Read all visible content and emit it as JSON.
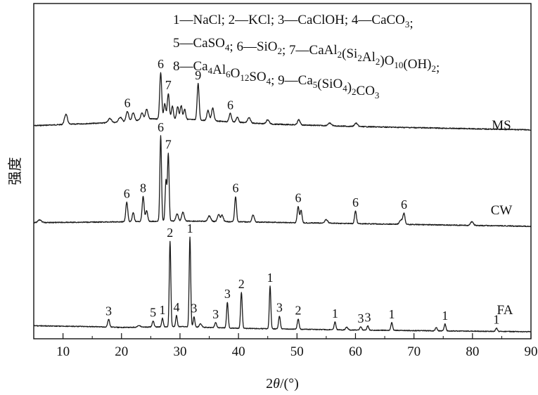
{
  "chart_data": {
    "type": "line",
    "xlabel_prefix": "2",
    "xlabel_theta": "θ",
    "xlabel_suffix": "/(°)",
    "ylabel": "强度",
    "xlim": [
      5,
      90
    ],
    "xticks": [
      "10",
      "20",
      "30",
      "40",
      "50",
      "60",
      "70",
      "80",
      "90"
    ],
    "legend_position": "top-right",
    "legend": [
      {
        "num": "1",
        "formula": [
          {
            "t": "NaCl"
          }
        ]
      },
      {
        "num": "2",
        "formula": [
          {
            "t": "KCl"
          }
        ]
      },
      {
        "num": "3",
        "formula": [
          {
            "t": "CaClOH"
          }
        ]
      },
      {
        "num": "4",
        "formula": [
          {
            "t": "CaCO"
          },
          {
            "s": "3"
          }
        ]
      },
      {
        "num": "5",
        "formula": [
          {
            "t": "CaSO"
          },
          {
            "s": "4"
          }
        ]
      },
      {
        "num": "6",
        "formula": [
          {
            "t": "SiO"
          },
          {
            "s": "2"
          }
        ]
      },
      {
        "num": "7",
        "formula": [
          {
            "t": "CaAl"
          },
          {
            "s": "2"
          },
          {
            "t": "(Si"
          },
          {
            "s": "2"
          },
          {
            "t": "Al"
          },
          {
            "s": "2"
          },
          {
            "t": ")O"
          },
          {
            "s": "10"
          },
          {
            "t": "(OH)"
          },
          {
            "s": "2"
          }
        ]
      },
      {
        "num": "8",
        "formula": [
          {
            "t": "Ca"
          },
          {
            "s": "4"
          },
          {
            "t": "Al"
          },
          {
            "s": "6"
          },
          {
            "t": "O"
          },
          {
            "s": "12"
          },
          {
            "t": "SO"
          },
          {
            "s": "4"
          }
        ]
      },
      {
        "num": "9",
        "formula": [
          {
            "t": "Ca"
          },
          {
            "s": "5"
          },
          {
            "t": "(SiO"
          },
          {
            "s": "4"
          },
          {
            "t": ")"
          },
          {
            "s": "2"
          },
          {
            "t": "CO"
          },
          {
            "s": "3"
          }
        ]
      }
    ],
    "series": [
      {
        "name": "MS",
        "baseline": [
          [
            5,
            0.06
          ],
          [
            20,
            0.1
          ],
          [
            25,
            0.14
          ],
          [
            30,
            0.14
          ],
          [
            35,
            0.12
          ],
          [
            45,
            0.08
          ],
          [
            60,
            0.05
          ],
          [
            75,
            0.03
          ],
          [
            90,
            0.01
          ]
        ],
        "peaks": [
          [
            10.5,
            0.12,
            "",
            0.25
          ],
          [
            18,
            0.05,
            "",
            0.3
          ],
          [
            19.8,
            0.06,
            "",
            0.3
          ],
          [
            21.0,
            0.12,
            "6",
            0.22
          ],
          [
            22.0,
            0.1,
            "",
            0.22
          ],
          [
            23.5,
            0.08,
            "",
            0.22
          ],
          [
            24.3,
            0.12,
            "",
            0.22
          ],
          [
            26.7,
            0.55,
            "6",
            0.17
          ],
          [
            27.4,
            0.18,
            "",
            0.17
          ],
          [
            28.0,
            0.3,
            "7",
            0.17
          ],
          [
            28.7,
            0.15,
            "",
            0.17
          ],
          [
            29.6,
            0.15,
            "",
            0.17
          ],
          [
            30.2,
            0.16,
            "",
            0.17
          ],
          [
            30.8,
            0.12,
            "",
            0.17
          ],
          [
            33.1,
            0.43,
            "9",
            0.17
          ],
          [
            34.8,
            0.12,
            "",
            0.2
          ],
          [
            35.6,
            0.15,
            "",
            0.2
          ],
          [
            38.6,
            0.1,
            "6",
            0.2
          ],
          [
            39.8,
            0.06,
            "",
            0.2
          ],
          [
            41.8,
            0.06,
            "",
            0.25
          ],
          [
            45.0,
            0.05,
            "",
            0.25
          ],
          [
            50.3,
            0.06,
            "",
            0.22
          ],
          [
            55.6,
            0.03,
            "",
            0.3
          ],
          [
            60.1,
            0.04,
            "",
            0.25
          ]
        ]
      },
      {
        "name": "CW",
        "baseline": [
          [
            5,
            0.04
          ],
          [
            20,
            0.05
          ],
          [
            30,
            0.06
          ],
          [
            40,
            0.05
          ],
          [
            60,
            0.03
          ],
          [
            90,
            0.0
          ]
        ],
        "peaks": [
          [
            6.0,
            0.03,
            "",
            0.3
          ],
          [
            20.9,
            0.22,
            "6",
            0.17
          ],
          [
            22.0,
            0.1,
            "",
            0.17
          ],
          [
            23.7,
            0.28,
            "8",
            0.17
          ],
          [
            24.3,
            0.12,
            "",
            0.17
          ],
          [
            26.7,
            0.95,
            "6",
            0.14
          ],
          [
            27.6,
            0.45,
            "",
            0.14
          ],
          [
            28.0,
            0.75,
            "7",
            0.14
          ],
          [
            29.5,
            0.08,
            "",
            0.2
          ],
          [
            30.5,
            0.1,
            "",
            0.2
          ],
          [
            35.0,
            0.06,
            "",
            0.25
          ],
          [
            36.6,
            0.08,
            "",
            0.2
          ],
          [
            37.2,
            0.07,
            "",
            0.2
          ],
          [
            39.5,
            0.28,
            "6",
            0.16
          ],
          [
            42.5,
            0.08,
            "",
            0.2
          ],
          [
            50.2,
            0.18,
            "6",
            0.16
          ],
          [
            50.7,
            0.14,
            "",
            0.16
          ],
          [
            55.0,
            0.04,
            "",
            0.25
          ],
          [
            60.0,
            0.14,
            "6",
            0.16
          ],
          [
            67.8,
            0.05,
            "",
            0.25
          ],
          [
            68.3,
            0.12,
            "6",
            0.17
          ],
          [
            79.9,
            0.04,
            "",
            0.25
          ]
        ]
      },
      {
        "name": "FA",
        "baseline": [
          [
            5,
            0.07
          ],
          [
            15,
            0.06
          ],
          [
            20,
            0.05
          ],
          [
            30,
            0.06
          ],
          [
            40,
            0.04
          ],
          [
            60,
            0.02
          ],
          [
            90,
            0.0
          ]
        ],
        "peaks": [
          [
            17.8,
            0.09,
            "3",
            0.16
          ],
          [
            23.0,
            0.02,
            "",
            0.25
          ],
          [
            25.4,
            0.07,
            "5",
            0.16
          ],
          [
            27.0,
            0.1,
            "1",
            0.14
          ],
          [
            28.3,
            1.0,
            "2",
            0.13
          ],
          [
            29.4,
            0.13,
            "4",
            0.14
          ],
          [
            31.7,
            1.05,
            "1",
            0.13
          ],
          [
            32.4,
            0.12,
            "3",
            0.14
          ],
          [
            33.5,
            0.04,
            "",
            0.2
          ],
          [
            36.1,
            0.06,
            "3",
            0.16
          ],
          [
            38.1,
            0.3,
            "3",
            0.14
          ],
          [
            40.5,
            0.42,
            "2",
            0.14
          ],
          [
            45.4,
            0.5,
            "1",
            0.13
          ],
          [
            47.0,
            0.15,
            "3",
            0.15
          ],
          [
            50.2,
            0.12,
            "2",
            0.15
          ],
          [
            56.5,
            0.09,
            "1",
            0.15
          ],
          [
            58.5,
            0.03,
            "",
            0.2
          ],
          [
            60.9,
            0.04,
            "3",
            0.15
          ],
          [
            62.1,
            0.05,
            "3",
            0.15
          ],
          [
            66.2,
            0.09,
            "1",
            0.15
          ],
          [
            73.8,
            0.04,
            "",
            0.15
          ],
          [
            75.3,
            0.08,
            "1",
            0.15
          ],
          [
            84.1,
            0.04,
            "1",
            0.15
          ]
        ]
      }
    ]
  }
}
